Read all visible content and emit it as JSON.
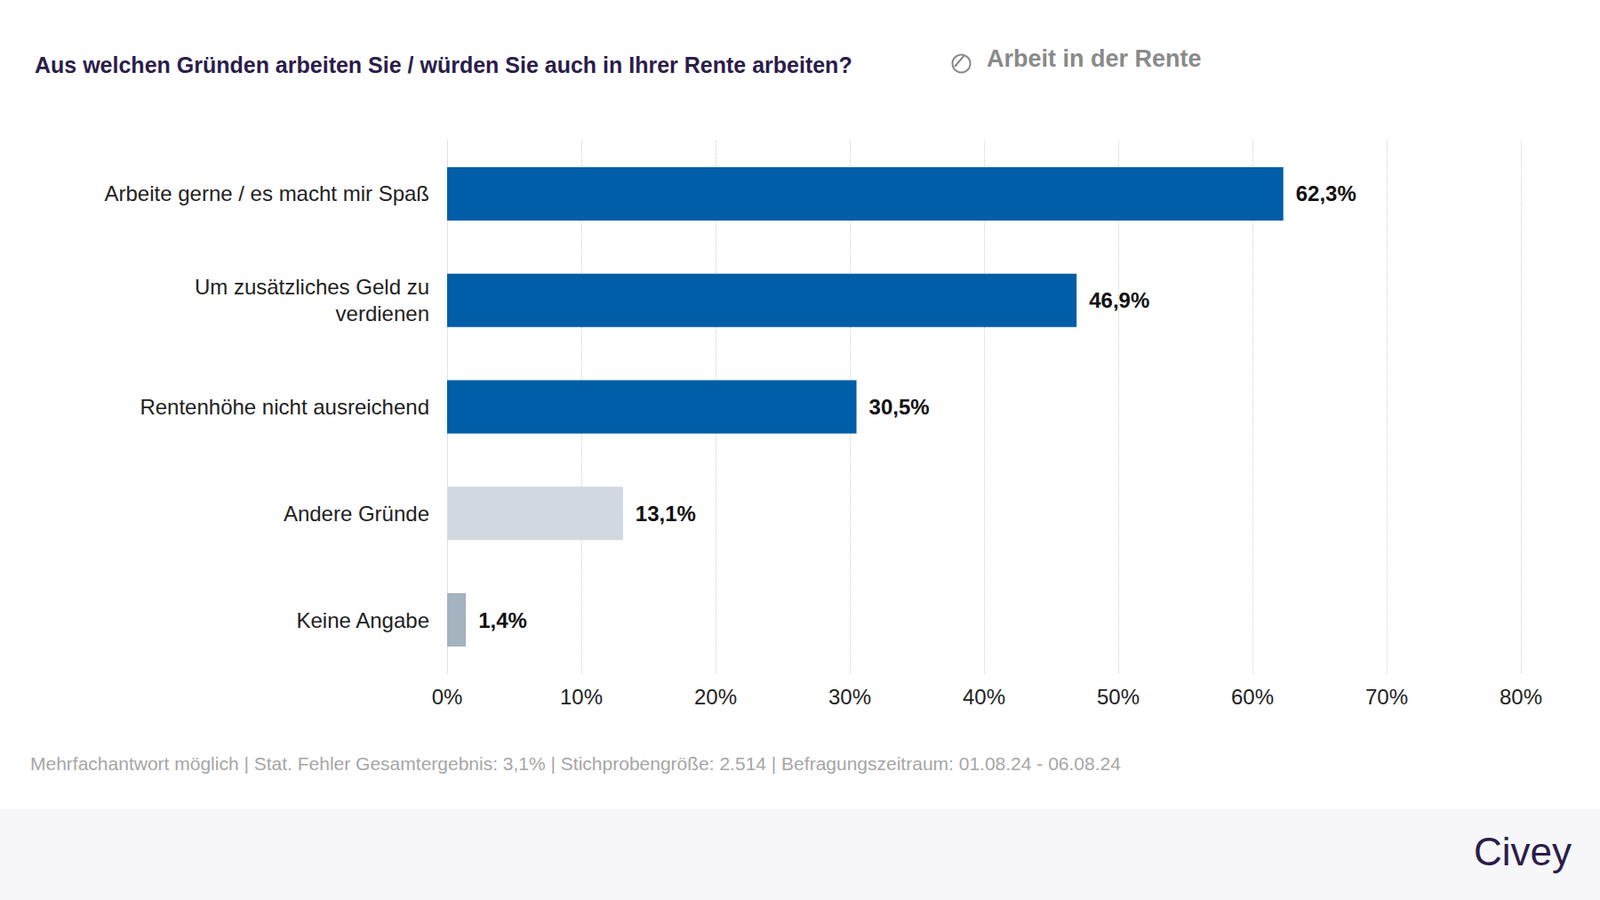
{
  "chart_data": {
    "type": "bar",
    "orientation": "horizontal",
    "title": "Aus welchen Gründen arbeiten Sie / würden Sie auch in Ihrer Rente arbeiten?",
    "subtitle": "Arbeit in der Rente",
    "categories": [
      "Arbeite gerne / es macht mir Spaß",
      "Um zusätzliches Geld zu\nverdienen",
      "Rentenhöhe nicht ausreichend",
      "Andere Gründe",
      "Keine Angabe"
    ],
    "values": [
      62.3,
      46.9,
      30.5,
      13.1,
      1.4
    ],
    "value_labels": [
      "62,3%",
      "46,9%",
      "30,5%",
      "13,1%",
      "1,4%"
    ],
    "colors": [
      "#005ea8",
      "#005ea8",
      "#005ea8",
      "#d0d8e0",
      "#a3b3c0"
    ],
    "data_labels": true,
    "xlim": [
      0,
      80
    ],
    "xticks": [
      {
        "value": 0,
        "label": "0%"
      },
      {
        "value": 10,
        "label": "10%"
      },
      {
        "value": 20,
        "label": "20%"
      },
      {
        "value": 30,
        "label": "30%"
      },
      {
        "value": 40,
        "label": "40%"
      },
      {
        "value": 50,
        "label": "50%"
      },
      {
        "value": 60,
        "label": "60%"
      },
      {
        "value": 70,
        "label": "70%"
      },
      {
        "value": 80,
        "label": "80%"
      }
    ],
    "grid": true,
    "annotations": [
      "Mehrfachantwort möglich | Stat. Fehler Gesamtergebnis: 3,1% | Stichprobengröße: 2.514 | Befragungszeitraum: 01.08.24 - 06.08.24",
      "Civey"
    ]
  }
}
